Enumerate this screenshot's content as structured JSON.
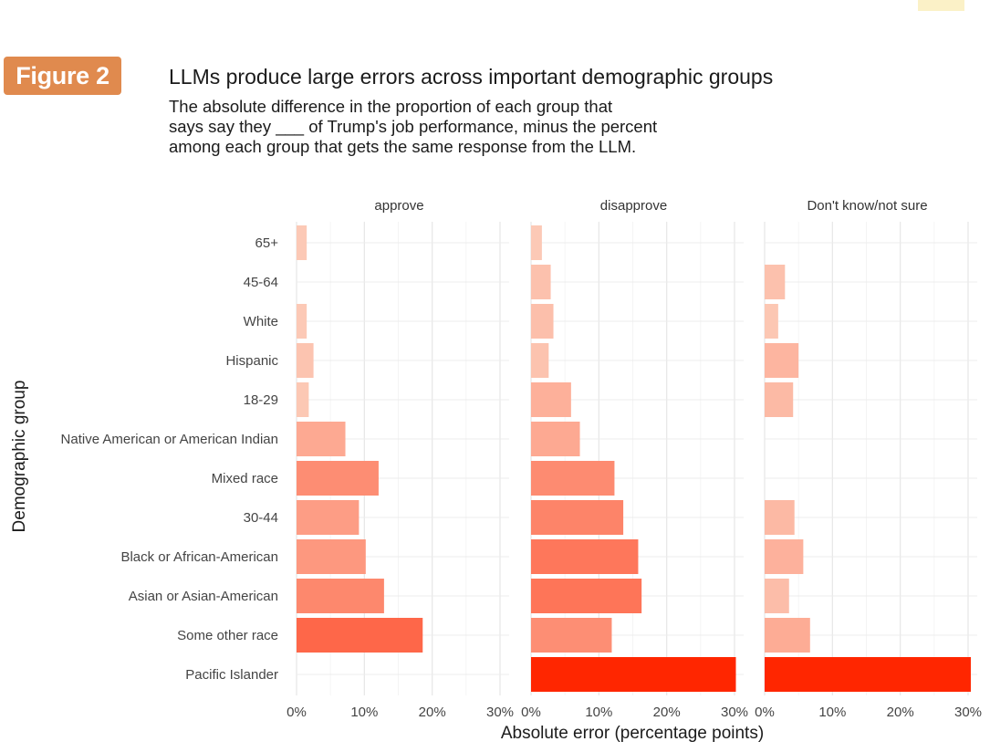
{
  "badge": "Figure 2",
  "title": "LLMs produce large errors across important demographic groups",
  "subtitle": "The absolute difference in the proportion of each group that\nsays say they ___ of Trump's job performance, minus the percent\namong each group that gets the same response from the LLM.",
  "chart_data": {
    "type": "bar",
    "orientation": "horizontal",
    "xlabel": "Absolute error (percentage points)",
    "ylabel": "Demographic group",
    "xlim": [
      0,
      30
    ],
    "x_ticks": [
      "0%",
      "10%",
      "20%",
      "30%"
    ],
    "grid": true,
    "legend": "none",
    "categories": [
      "65+",
      "45-64",
      "White",
      "Hispanic",
      "18-29",
      "Native American or American Indian",
      "Mixed race",
      "30-44",
      "Black or African-American",
      "Asian or Asian-American",
      "Some other race",
      "Pacific Islander"
    ],
    "panels": [
      {
        "name": "approve",
        "values": [
          1.5,
          null,
          1.5,
          2.5,
          1.8,
          7.2,
          12.1,
          9.2,
          10.2,
          12.9,
          18.6,
          null
        ]
      },
      {
        "name": "disapprove",
        "values": [
          1.6,
          2.9,
          3.3,
          2.6,
          5.9,
          7.2,
          12.3,
          13.6,
          15.8,
          16.3,
          11.9,
          30.2
        ]
      },
      {
        "name": "Don't know/not sure",
        "values": [
          null,
          3.0,
          2.0,
          5.0,
          4.2,
          null,
          null,
          4.4,
          5.7,
          3.6,
          6.7,
          30.4
        ]
      }
    ],
    "color_scale": {
      "low": "#fcd2c0",
      "high": "#ff2600"
    }
  }
}
